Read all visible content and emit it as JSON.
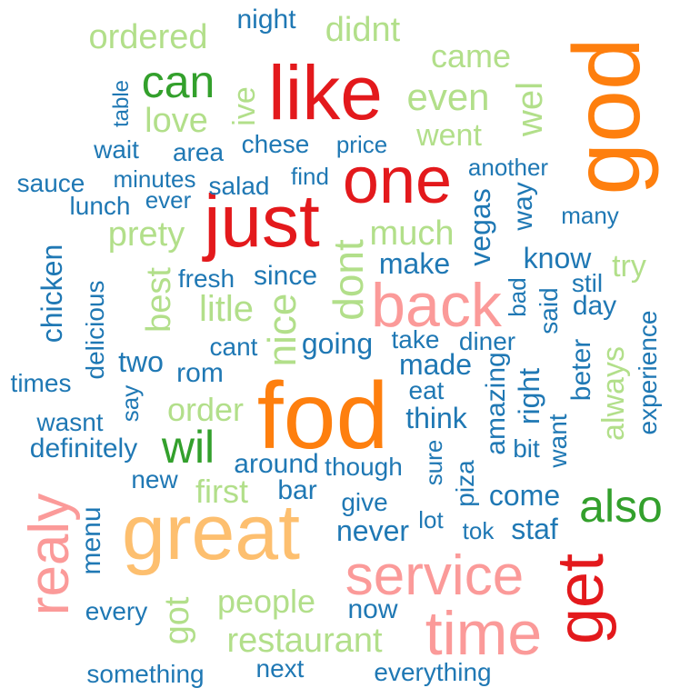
{
  "words": {
    "fod": "fod",
    "great": "great",
    "god": "god",
    "like": "like",
    "one": "one",
    "just": "just",
    "back": "back",
    "service": "service",
    "time": "time",
    "get": "get",
    "realy": "realy",
    "wil": "wil",
    "also": "also",
    "can": "can",
    "dont": "dont",
    "nice": "nice",
    "ordered": "ordered",
    "didnt": "didnt",
    "came": "came",
    "even": "even",
    "wel": "wel",
    "love": "love",
    "ive": "ive",
    "went": "went",
    "much": "much",
    "prety": "prety",
    "best": "best",
    "litle": "litle",
    "order": "order",
    "first": "first",
    "got": "got",
    "people": "people",
    "restaurant": "restaurant",
    "always": "always",
    "try": "try",
    "night": "night",
    "table": "table",
    "wait": "wait",
    "area": "area",
    "chese": "chese",
    "price": "price",
    "sauce": "sauce",
    "minutes": "minutes",
    "salad": "salad",
    "find": "find",
    "another": "another",
    "lunch": "lunch",
    "ever": "ever",
    "way": "way",
    "many": "many",
    "vegas": "vegas",
    "know": "know",
    "chicken": "chicken",
    "delicious": "delicious",
    "fresh": "fresh",
    "since": "since",
    "make": "make",
    "stil": "stil",
    "bad": "bad",
    "said": "said",
    "day": "day",
    "cant": "cant",
    "going": "going",
    "take": "take",
    "diner": "diner",
    "two": "two",
    "rom": "rom",
    "made": "made",
    "times": "times",
    "say": "say",
    "eat": "eat",
    "amazing": "amazing",
    "right": "right",
    "beter": "beter",
    "experience": "experience",
    "wasnt": "wasnt",
    "think": "think",
    "want": "want",
    "definitely": "definitely",
    "around": "around",
    "though": "though",
    "sure": "sure",
    "bit": "bit",
    "new": "new",
    "piza": "piza",
    "bar": "bar",
    "give": "give",
    "come": "come",
    "menu": "menu",
    "never": "never",
    "lot": "lot",
    "tok": "tok",
    "staf": "staf",
    "every": "every",
    "now": "now",
    "something": "something",
    "next": "next",
    "everything": "everything"
  },
  "palette": {
    "red": "#e3191c",
    "orange": "#fe7f0e",
    "pink": "#fb9a99",
    "light_orange": "#fdbf6f",
    "green": "#33a02c",
    "light_green": "#b2df8a",
    "blue": "#1f78b4"
  }
}
